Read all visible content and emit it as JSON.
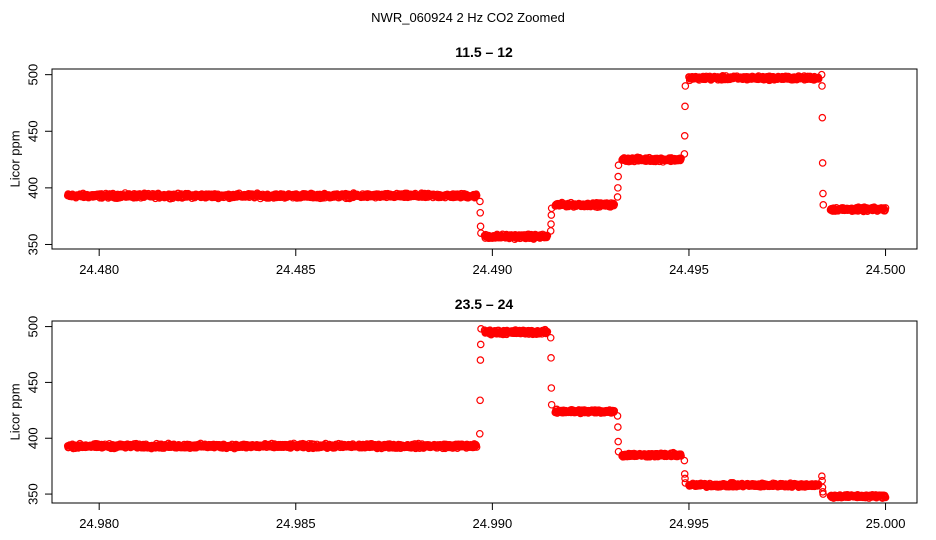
{
  "figure": {
    "title": "NWR_060924  2 Hz CO2 Zoomed"
  },
  "colors": {
    "points": "#ff0000",
    "axes": "#000000",
    "background": "#ffffff"
  },
  "chart_data": [
    {
      "type": "scatter",
      "title": "11.5 – 12",
      "xlabel": "",
      "ylabel": "Licor ppm",
      "xlim": [
        24.4788,
        24.5008
      ],
      "ylim": [
        346,
        505
      ],
      "xticks": [
        24.48,
        24.485,
        24.49,
        24.495,
        24.5
      ],
      "xtick_labels": [
        "24.480",
        "24.485",
        "24.490",
        "24.495",
        "24.500"
      ],
      "yticks": [
        350,
        400,
        450,
        500
      ],
      "ytick_labels": [
        "350",
        "400",
        "450",
        "500"
      ],
      "grid": false,
      "marker": "open-circle",
      "series": [
        {
          "segments": [
            {
              "x_start": 24.4792,
              "x_end": 24.4896,
              "y": 393,
              "noise": 1.6
            },
            {
              "x_start": 24.4898,
              "x_end": 24.4914,
              "y": 357,
              "noise": 1.6
            },
            {
              "x_start": 24.4916,
              "x_end": 24.4931,
              "y": 385,
              "noise": 1.4
            },
            {
              "x_start": 24.4933,
              "x_end": 24.4948,
              "y": 425,
              "noise": 1.4
            },
            {
              "x_start": 24.495,
              "x_end": 24.4983,
              "y": 497,
              "noise": 1.4
            },
            {
              "x_start": 24.4986,
              "x_end": 24.5,
              "y": 381,
              "noise": 1.4
            }
          ],
          "transitions": [
            {
              "x": 24.4897,
              "y": [
                388,
                378,
                366,
                360
              ]
            },
            {
              "x": 24.4915,
              "y": [
                362,
                368,
                376,
                382
              ]
            },
            {
              "x": 24.4932,
              "y": [
                392,
                400,
                410,
                420
              ]
            },
            {
              "x": 24.4949,
              "y": [
                430,
                446,
                472,
                490
              ]
            },
            {
              "x": 24.4984,
              "y": [
                500,
                490,
                462,
                422,
                395,
                385
              ]
            }
          ]
        }
      ]
    },
    {
      "type": "scatter",
      "title": "23.5 – 24",
      "xlabel": "",
      "ylabel": "Licor ppm",
      "xlim": [
        24.9788,
        25.0008
      ],
      "ylim": [
        342,
        505
      ],
      "xticks": [
        24.98,
        24.985,
        24.99,
        24.995,
        25.0
      ],
      "xtick_labels": [
        "24.980",
        "24.985",
        "24.990",
        "24.995",
        "25.000"
      ],
      "yticks": [
        350,
        400,
        450,
        500
      ],
      "ytick_labels": [
        "350",
        "400",
        "450",
        "500"
      ],
      "grid": false,
      "marker": "open-circle",
      "series": [
        {
          "segments": [
            {
              "x_start": 24.9792,
              "x_end": 24.9896,
              "y": 393,
              "noise": 1.6
            },
            {
              "x_start": 24.9898,
              "x_end": 24.9914,
              "y": 495,
              "noise": 1.6
            },
            {
              "x_start": 24.9916,
              "x_end": 24.9931,
              "y": 424,
              "noise": 1.4
            },
            {
              "x_start": 24.9933,
              "x_end": 24.9948,
              "y": 385,
              "noise": 1.4
            },
            {
              "x_start": 24.995,
              "x_end": 24.9983,
              "y": 358,
              "noise": 1.4
            },
            {
              "x_start": 24.9986,
              "x_end": 25.0,
              "y": 348,
              "noise": 1.2
            }
          ],
          "transitions": [
            {
              "x": 24.9897,
              "y": [
                404,
                434,
                470,
                484,
                498
              ]
            },
            {
              "x": 24.9915,
              "y": [
                490,
                472,
                445,
                430
              ]
            },
            {
              "x": 24.9932,
              "y": [
                420,
                410,
                397,
                388
              ]
            },
            {
              "x": 24.9949,
              "y": [
                380,
                368,
                364,
                360
              ]
            },
            {
              "x": 24.9984,
              "y": [
                366,
                362,
                356,
                352,
                350
              ]
            }
          ]
        }
      ]
    }
  ]
}
